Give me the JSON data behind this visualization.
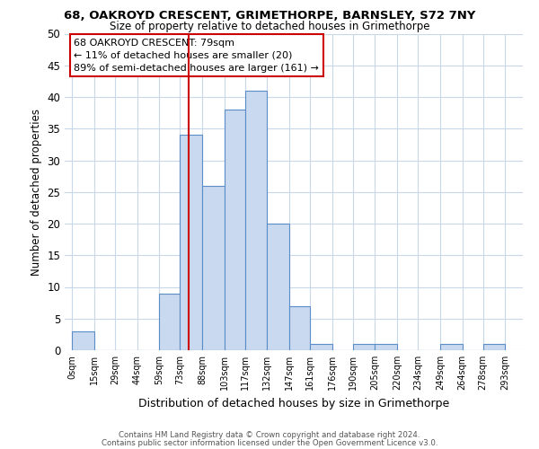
{
  "title": "68, OAKROYD CRESCENT, GRIMETHORPE, BARNSLEY, S72 7NY",
  "subtitle": "Size of property relative to detached houses in Grimethorpe",
  "xlabel": "Distribution of detached houses by size in Grimethorpe",
  "ylabel": "Number of detached properties",
  "bar_edges": [
    0,
    15,
    29,
    44,
    59,
    73,
    88,
    103,
    117,
    132,
    147,
    161,
    176,
    190,
    205,
    220,
    234,
    249,
    264,
    278,
    293
  ],
  "bar_heights": [
    3,
    0,
    0,
    0,
    9,
    34,
    26,
    38,
    41,
    20,
    7,
    1,
    0,
    1,
    1,
    0,
    0,
    1,
    0,
    1
  ],
  "tick_labels": [
    "0sqm",
    "15sqm",
    "29sqm",
    "44sqm",
    "59sqm",
    "73sqm",
    "88sqm",
    "103sqm",
    "117sqm",
    "132sqm",
    "147sqm",
    "161sqm",
    "176sqm",
    "190sqm",
    "205sqm",
    "220sqm",
    "234sqm",
    "249sqm",
    "264sqm",
    "278sqm",
    "293sqm"
  ],
  "bar_color": "#c9d9f0",
  "bar_edge_color": "#5b8ec6",
  "property_line_x": 79,
  "property_line_color": "#cc0000",
  "annotation_text_line1": "68 OAKROYD CRESCENT: 79sqm",
  "annotation_text_line2": "← 11% of detached houses are smaller (20)",
  "annotation_text_line3": "89% of semi-detached houses are larger (161) →",
  "ylim": [
    0,
    50
  ],
  "yticks": [
    0,
    5,
    10,
    15,
    20,
    25,
    30,
    35,
    40,
    45,
    50
  ],
  "footer1": "Contains HM Land Registry data © Crown copyright and database right 2024.",
  "footer2": "Contains public sector information licensed under the Open Government Licence v3.0.",
  "background_color": "#ffffff",
  "grid_color": "#c8d8e8"
}
